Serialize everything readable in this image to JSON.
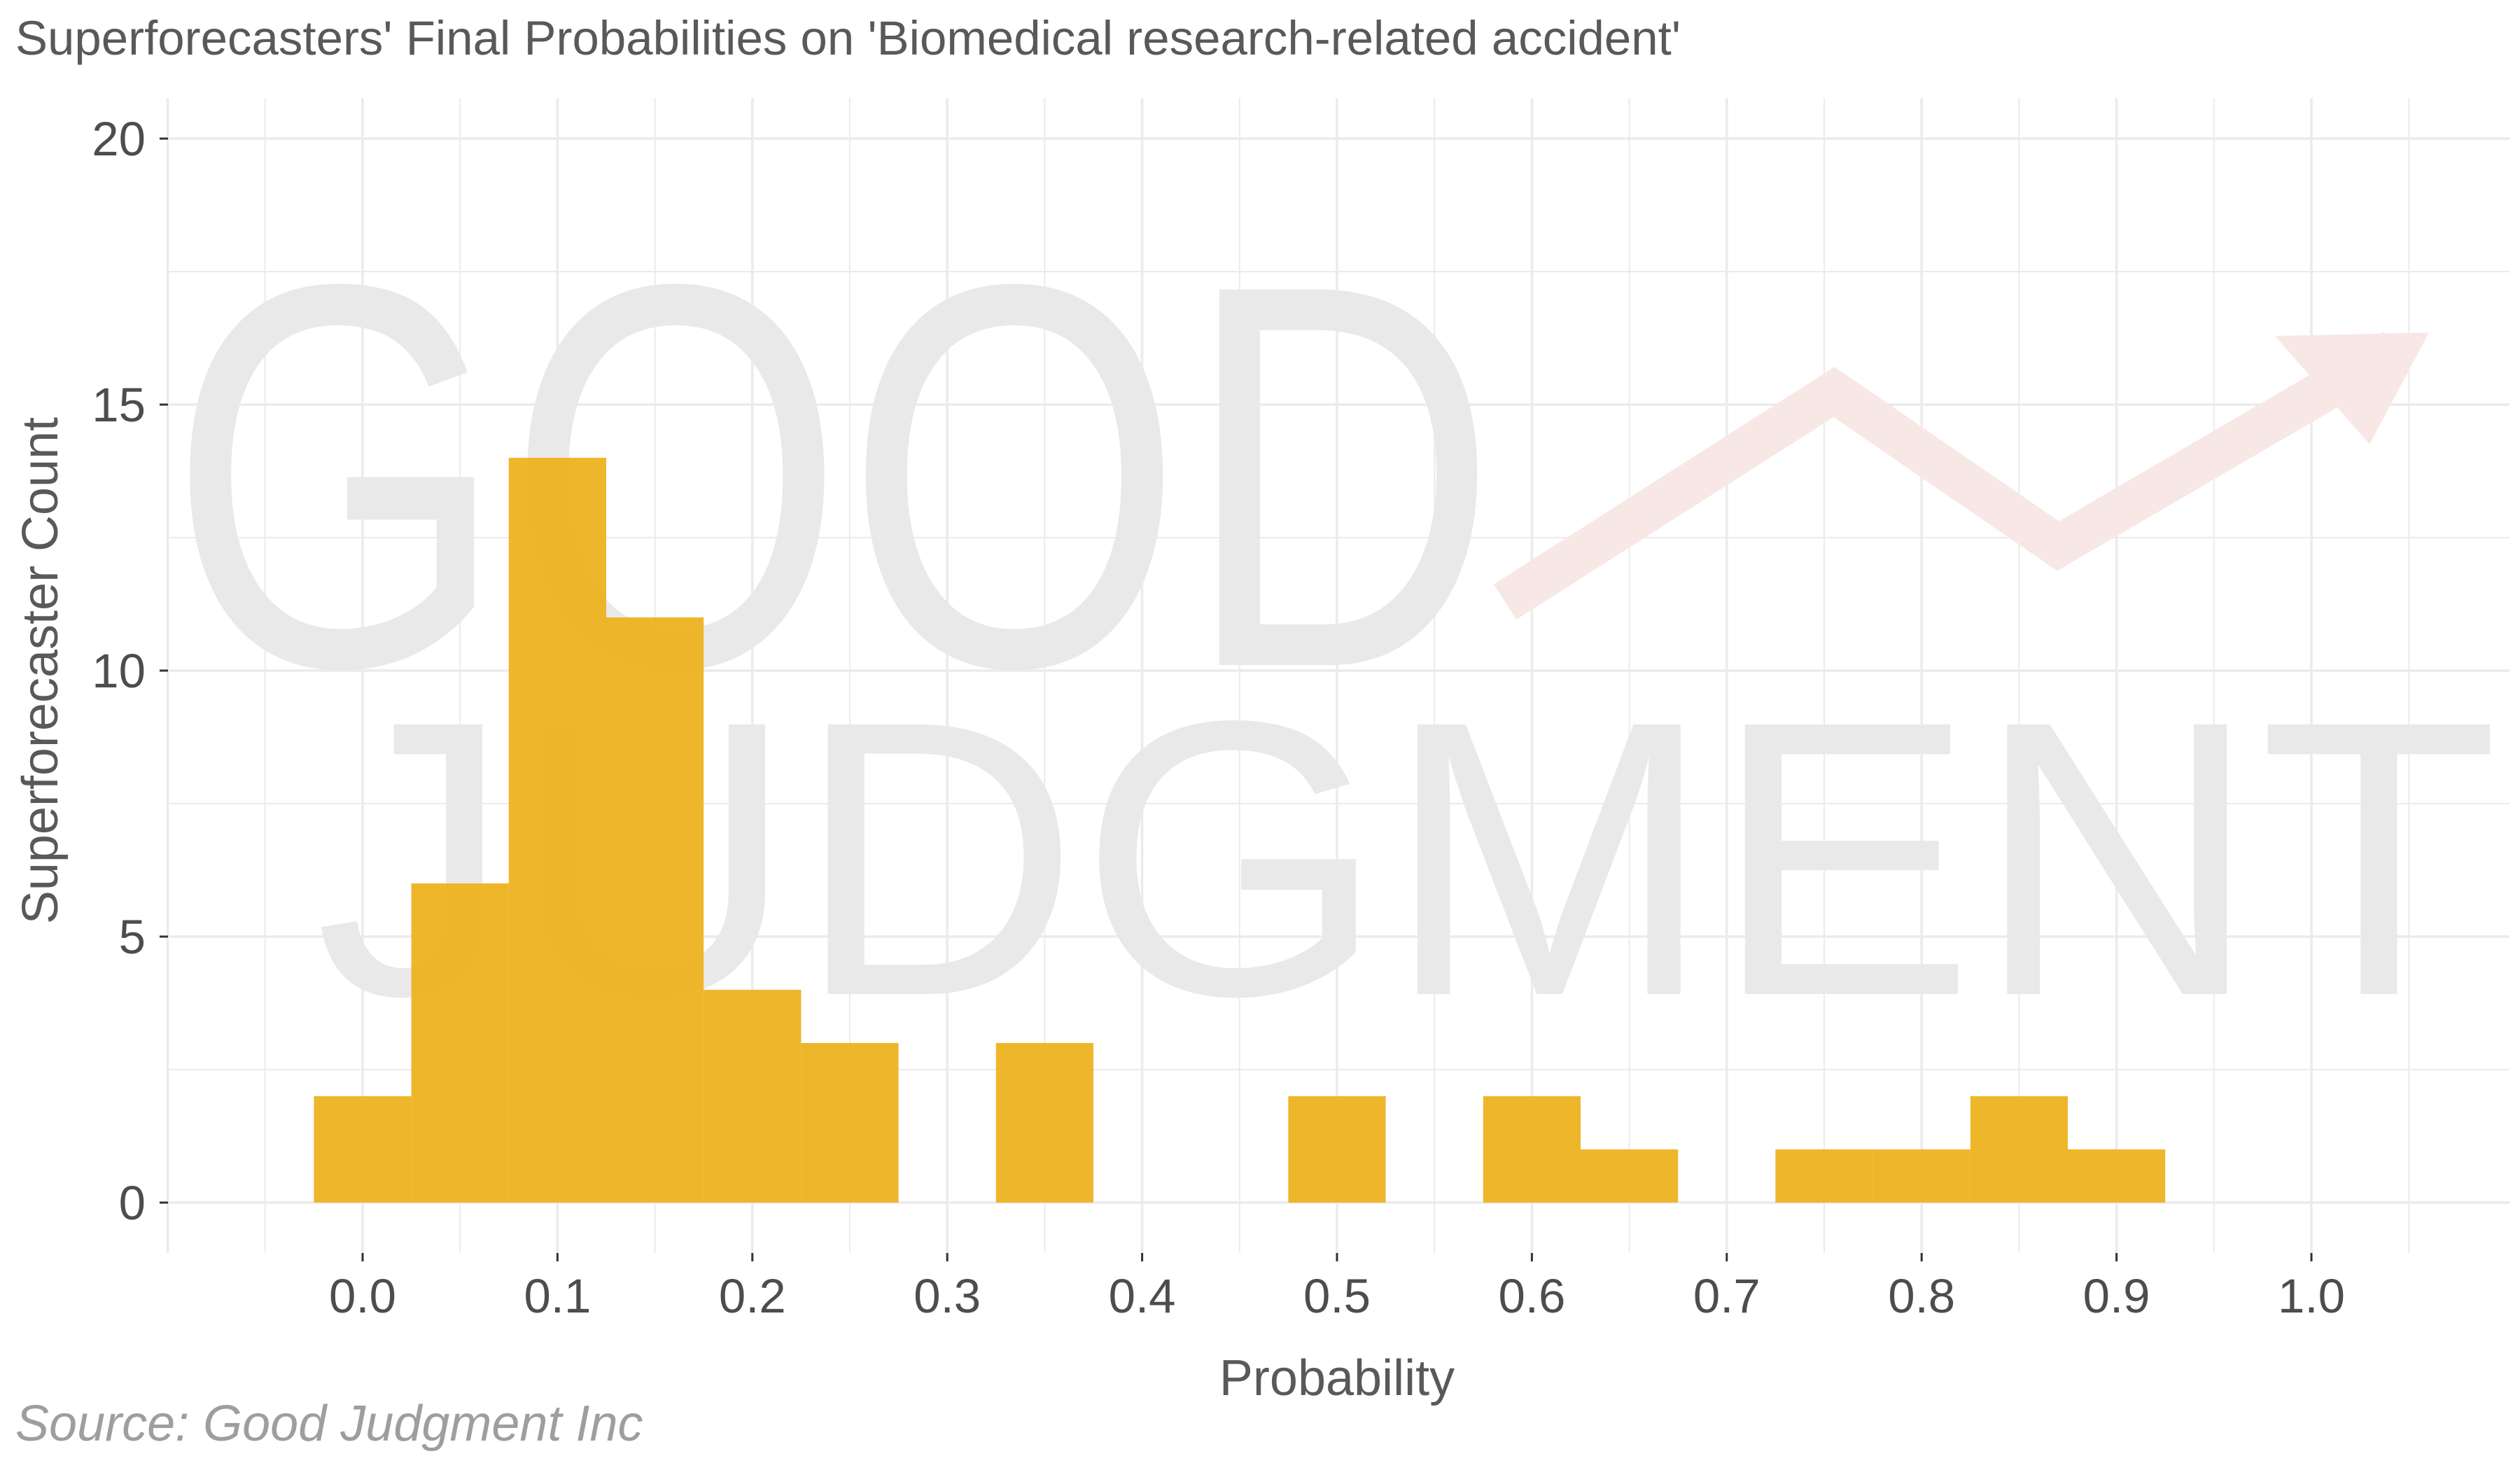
{
  "colors": {
    "bar": "#EDB220",
    "grid": "#ebebeb",
    "text": "#595959",
    "caption": "#9e9e9e",
    "watermark": "#e9e9e9",
    "watermark_arrow": "#f7e8e6"
  },
  "watermark": {
    "line1": "GOOD",
    "line2": "JUDGMENT",
    "icon": "trend-arrow-icon"
  },
  "caption": "Source: Good Judgment Inc",
  "chart_data": {
    "type": "bar",
    "title": "Superforecasters' Final Probabilities on 'Biomedical research-related accident'",
    "xlabel": "Probability",
    "ylabel": "Superforecaster Count",
    "xlim": [
      -0.1,
      1.1
    ],
    "ylim": [
      0,
      20
    ],
    "bin_width": 0.05,
    "x_ticks": [
      0.0,
      0.1,
      0.2,
      0.3,
      0.4,
      0.5,
      0.6,
      0.7,
      0.8,
      0.9,
      1.0
    ],
    "x_tick_labels": [
      "0.0",
      "0.1",
      "0.2",
      "0.3",
      "0.4",
      "0.5",
      "0.6",
      "0.7",
      "0.8",
      "0.9",
      "1.0"
    ],
    "y_ticks": [
      0,
      5,
      10,
      15,
      20
    ],
    "y_tick_labels": [
      "0",
      "5",
      "10",
      "15",
      "20"
    ],
    "bin_centers": [
      0.0,
      0.05,
      0.1,
      0.15,
      0.2,
      0.25,
      0.35,
      0.5,
      0.6,
      0.65,
      0.75,
      0.8,
      0.85,
      0.9
    ],
    "values": [
      2,
      6,
      14,
      11,
      4,
      3,
      3,
      2,
      2,
      1,
      1,
      1,
      2,
      1
    ]
  }
}
